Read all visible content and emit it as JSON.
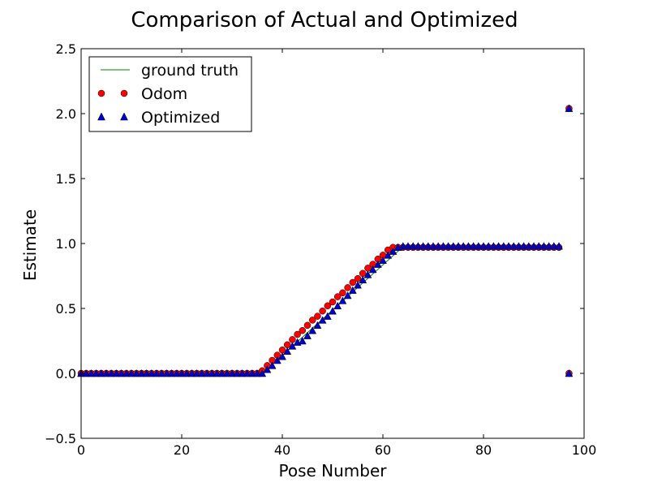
{
  "chart_data": {
    "type": "scatter",
    "title": "Comparison of Actual and Optimized",
    "xlabel": "Pose Number",
    "ylabel": "Estimate",
    "xlim": [
      0,
      100
    ],
    "ylim": [
      -0.5,
      2.5
    ],
    "xticks": [
      0,
      20,
      40,
      60,
      80,
      100
    ],
    "xtick_labels": [
      "0",
      "20",
      "40",
      "60",
      "80",
      "100"
    ],
    "yticks": [
      -0.5,
      0.0,
      0.5,
      1.0,
      1.5,
      2.0,
      2.5
    ],
    "ytick_labels": [
      "−0.5",
      "0.0",
      "0.5",
      "1.0",
      "1.5",
      "2.0",
      "2.5"
    ],
    "grid": false,
    "legend_position": "top-left",
    "series": [
      {
        "name": "ground truth",
        "kind": "line",
        "color": "#008000",
        "x": [
          0,
          36,
          64,
          95
        ],
        "y": [
          0.0,
          0.0,
          0.975,
          0.975
        ]
      },
      {
        "name": "Odom",
        "kind": "marker",
        "marker": "circle",
        "color": "#ff0000",
        "x": [
          0,
          1,
          2,
          3,
          4,
          5,
          6,
          7,
          8,
          9,
          10,
          11,
          12,
          13,
          14,
          15,
          16,
          17,
          18,
          19,
          20,
          21,
          22,
          23,
          24,
          25,
          26,
          27,
          28,
          29,
          30,
          31,
          32,
          33,
          34,
          35,
          36,
          37,
          38,
          39,
          40,
          41,
          42,
          43,
          44,
          45,
          46,
          47,
          48,
          49,
          50,
          51,
          52,
          53,
          54,
          55,
          56,
          57,
          58,
          59,
          60,
          61,
          62,
          63,
          64,
          65,
          66,
          67,
          68,
          69,
          70,
          71,
          72,
          73,
          74,
          75,
          76,
          77,
          78,
          79,
          80,
          81,
          82,
          83,
          84,
          85,
          86,
          87,
          88,
          89,
          90,
          91,
          92,
          93,
          94,
          95,
          97,
          97
        ],
        "y": [
          0,
          0,
          0,
          0,
          0,
          0,
          0,
          0,
          0,
          0,
          0,
          0,
          0,
          0,
          0,
          0,
          0,
          0,
          0,
          0,
          0,
          0,
          0,
          0,
          0,
          0,
          0,
          0,
          0,
          0,
          0,
          0,
          0,
          0,
          0,
          0,
          0.02,
          0.06,
          0.1,
          0.14,
          0.18,
          0.22,
          0.26,
          0.3,
          0.33,
          0.37,
          0.41,
          0.44,
          0.48,
          0.52,
          0.55,
          0.59,
          0.62,
          0.66,
          0.7,
          0.73,
          0.77,
          0.81,
          0.84,
          0.88,
          0.91,
          0.95,
          0.97,
          0.97,
          0.97,
          0.97,
          0.97,
          0.97,
          0.97,
          0.97,
          0.97,
          0.97,
          0.97,
          0.97,
          0.97,
          0.97,
          0.97,
          0.97,
          0.97,
          0.97,
          0.97,
          0.97,
          0.97,
          0.97,
          0.97,
          0.97,
          0.97,
          0.97,
          0.97,
          0.97,
          0.97,
          0.97,
          0.97,
          0.97,
          0.97,
          0.97,
          2.04,
          0.0
        ]
      },
      {
        "name": "Optimized",
        "kind": "marker",
        "marker": "triangle",
        "color": "#0000cc",
        "x": [
          0,
          1,
          2,
          3,
          4,
          5,
          6,
          7,
          8,
          9,
          10,
          11,
          12,
          13,
          14,
          15,
          16,
          17,
          18,
          19,
          20,
          21,
          22,
          23,
          24,
          25,
          26,
          27,
          28,
          29,
          30,
          31,
          32,
          33,
          34,
          35,
          36,
          37,
          38,
          39,
          40,
          41,
          42,
          43,
          44,
          45,
          46,
          47,
          48,
          49,
          50,
          51,
          52,
          53,
          54,
          55,
          56,
          57,
          58,
          59,
          60,
          61,
          62,
          63,
          64,
          65,
          66,
          67,
          68,
          69,
          70,
          71,
          72,
          73,
          74,
          75,
          76,
          77,
          78,
          79,
          80,
          81,
          82,
          83,
          84,
          85,
          86,
          87,
          88,
          89,
          90,
          91,
          92,
          93,
          94,
          95,
          97,
          97
        ],
        "y": [
          0,
          0,
          0,
          0,
          0,
          0,
          0,
          0,
          0,
          0,
          0,
          0,
          0,
          0,
          0,
          0,
          0,
          0,
          0,
          0,
          0,
          0,
          0,
          0,
          0,
          0,
          0,
          0,
          0,
          0,
          0,
          0,
          0,
          0,
          0,
          0,
          0,
          0.03,
          0.06,
          0.1,
          0.13,
          0.17,
          0.21,
          0.24,
          0.25,
          0.29,
          0.33,
          0.37,
          0.41,
          0.44,
          0.48,
          0.52,
          0.56,
          0.6,
          0.64,
          0.68,
          0.72,
          0.76,
          0.8,
          0.84,
          0.87,
          0.91,
          0.94,
          0.97,
          0.98,
          0.98,
          0.98,
          0.98,
          0.98,
          0.98,
          0.98,
          0.98,
          0.98,
          0.98,
          0.98,
          0.98,
          0.98,
          0.98,
          0.98,
          0.98,
          0.98,
          0.98,
          0.98,
          0.98,
          0.98,
          0.98,
          0.98,
          0.98,
          0.98,
          0.98,
          0.98,
          0.98,
          0.98,
          0.98,
          0.98,
          0.98,
          2.04,
          0.0
        ]
      }
    ]
  }
}
